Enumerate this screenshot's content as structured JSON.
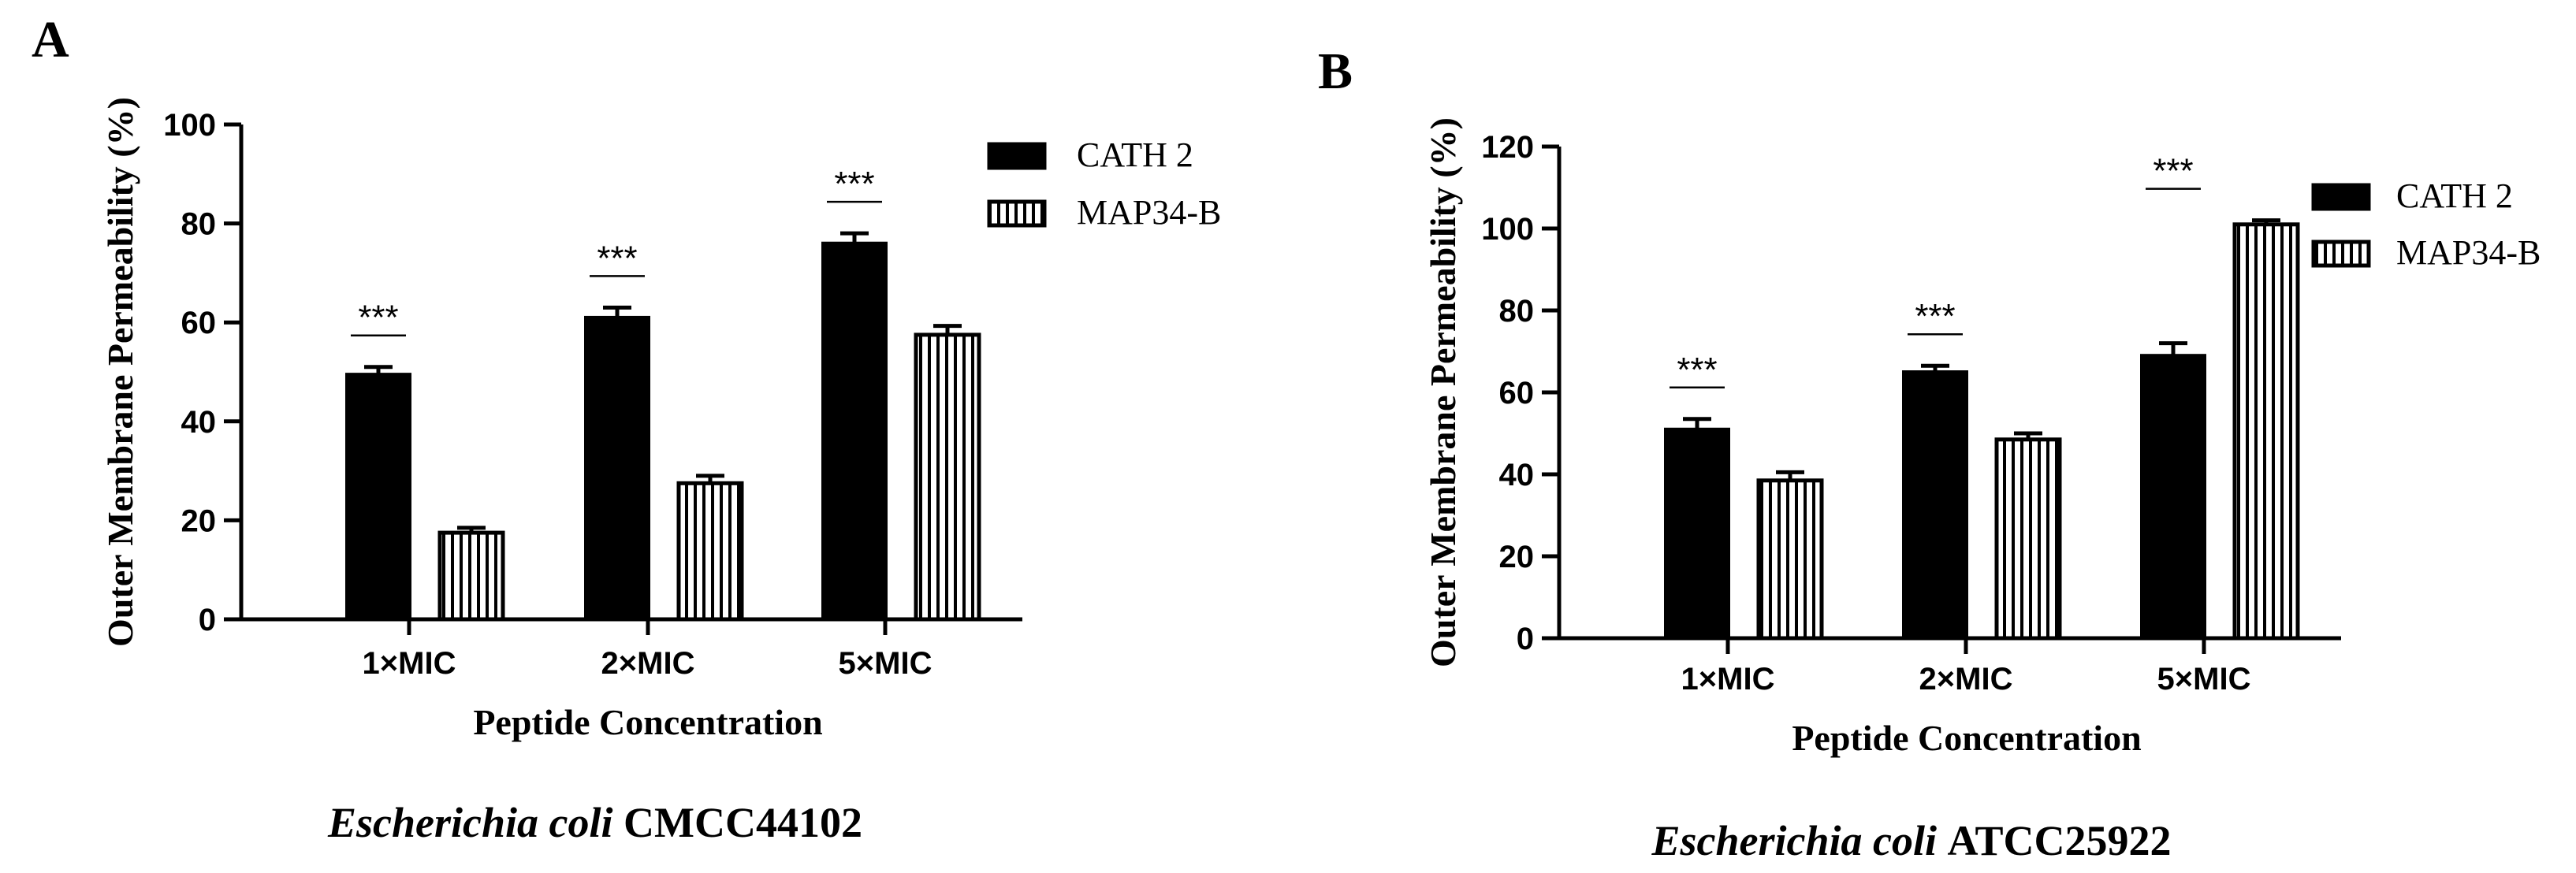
{
  "chart_data": [
    {
      "type": "bar",
      "panel_label": "A",
      "categories": [
        "1×MIC",
        "2×MIC",
        "5×MIC"
      ],
      "series": [
        {
          "name": "CATH 2",
          "values": [
            49.5,
            61,
            76
          ],
          "errors": [
            1.5,
            2,
            2
          ]
        },
        {
          "name": "MAP34-B",
          "values": [
            17.5,
            27.5,
            57.5
          ],
          "errors": [
            1,
            1.5,
            1.8
          ]
        }
      ],
      "significance": [
        "***",
        "***",
        "***"
      ],
      "yticks": [
        0,
        20,
        40,
        60,
        80,
        100
      ],
      "ylim": [
        0,
        100
      ],
      "ylabel": "Outer Membrane Permeability (%)",
      "xlabel": "Peptide Concentration",
      "caption_italic": "Escherichia coli",
      "caption_strain": "CMCC44102",
      "legend": "right"
    },
    {
      "type": "bar",
      "panel_label": "B",
      "categories": [
        "1×MIC",
        "2×MIC",
        "5×MIC"
      ],
      "series": [
        {
          "name": "CATH 2",
          "values": [
            51,
            65,
            69
          ],
          "errors": [
            2.5,
            1.5,
            3
          ]
        },
        {
          "name": "MAP34-B",
          "values": [
            38.5,
            48.5,
            101
          ],
          "errors": [
            2,
            1.5,
            1
          ]
        }
      ],
      "significance": [
        "***",
        "***",
        "***"
      ],
      "yticks": [
        0,
        20,
        40,
        60,
        80,
        100,
        120
      ],
      "ylim": [
        0,
        120
      ],
      "ylabel": "Outer Membrane Permeability (%)",
      "xlabel": "Peptide Concentration",
      "caption_italic": "Escherichia coli",
      "caption_strain": "ATCC25922",
      "legend": "right"
    }
  ]
}
